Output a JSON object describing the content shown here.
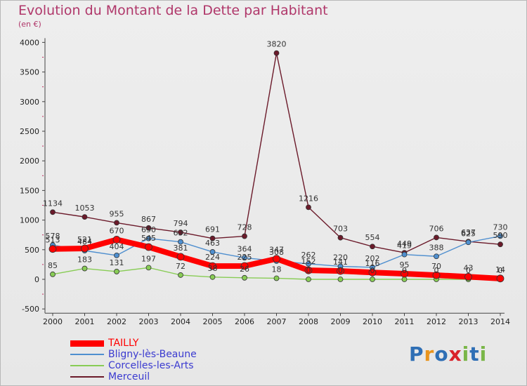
{
  "header": {
    "title": "Evolution du Montant de la Dette par Habitant",
    "subtitle": "(en €)"
  },
  "logo": {
    "text": "Proxiti",
    "colors": [
      "#2f6fb5",
      "#e8941e",
      "#2f6fb5",
      "#d9222a",
      "#7ab648",
      "#2f6fb5",
      "#7ab648"
    ]
  },
  "chart_data": {
    "type": "line",
    "title": "Evolution du Montant de la Dette par Habitant",
    "ylabel": "(en €)",
    "xlabel": "",
    "categories": [
      "2000",
      "2001",
      "2002",
      "2003",
      "2004",
      "2005",
      "2006",
      "2007",
      "2008",
      "2009",
      "2010",
      "2011",
      "2012",
      "2013",
      "2014"
    ],
    "ylim": [
      -500,
      4000
    ],
    "yticks": [
      -500,
      0,
      500,
      1000,
      1500,
      2000,
      2500,
      3000,
      3500,
      4000
    ],
    "grid": false,
    "legend_position": "bottom-left",
    "series": [
      {
        "name": "TAILLY",
        "color": "#ff0000",
        "values": [
          513,
          521,
          670,
          545,
          381,
          224,
          225,
          347,
          152,
          141,
          116,
          95,
          70,
          43,
          14
        ],
        "labels": [
          "513",
          "521",
          "670",
          "545",
          "381",
          "224",
          "225",
          "347",
          "152",
          "141",
          "116",
          "95",
          "70",
          "43",
          "14"
        ]
      },
      {
        "name": "Bligny-lès-Beaune",
        "color": "#4f8fcf",
        "values": [
          578,
          484,
          404,
          690,
          632,
          463,
          364,
          308,
          262,
          220,
          202,
          419,
          388,
          625,
          730
        ],
        "labels": [
          "578",
          "484",
          "404",
          "690",
          "632",
          "463",
          "364",
          "308",
          "262",
          "220",
          "202",
          "419",
          "388",
          "625",
          "730"
        ]
      },
      {
        "name": "Corcelles-les-Arts",
        "color": "#88cc55",
        "values": [
          85,
          183,
          131,
          197,
          72,
          38,
          26,
          18,
          0,
          0,
          0,
          0,
          0,
          0,
          0
        ],
        "labels": [
          "85",
          "183",
          "131",
          "197",
          "72",
          "38",
          "26",
          "18",
          "0",
          "0",
          "0",
          "0",
          "0",
          "0",
          "0"
        ]
      },
      {
        "name": "Merceuil",
        "color": "#6b1a2a",
        "values": [
          1134,
          1053,
          955,
          867,
          794,
          691,
          728,
          3820,
          1216,
          703,
          554,
          449,
          706,
          637,
          590
        ],
        "labels": [
          "1134",
          "1053",
          "955",
          "867",
          "794",
          "691",
          "728",
          "3820",
          "1216",
          "703",
          "554",
          "449",
          "706",
          "637",
          "590"
        ]
      }
    ]
  }
}
